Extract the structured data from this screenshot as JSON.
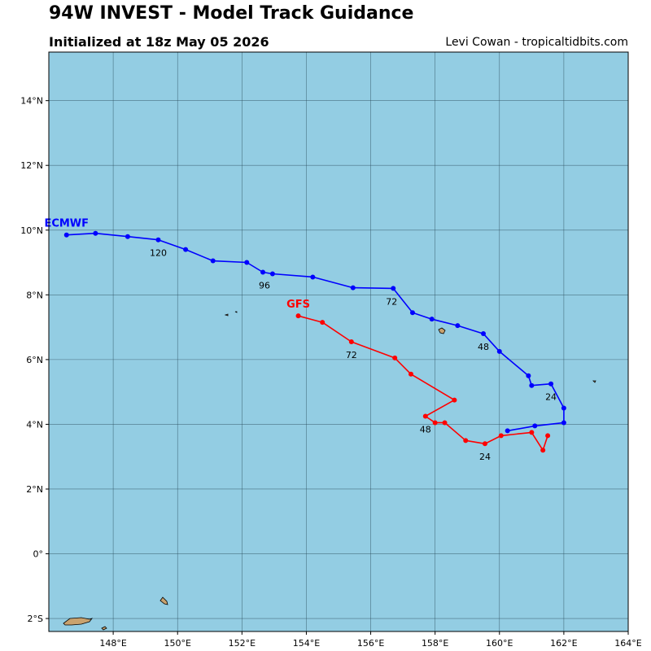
{
  "title": "94W INVEST - Model Track Guidance",
  "subtitle": "Initialized at 18z May 05 2026",
  "credit": "Levi Cowan - tropicaltidbits.com",
  "colors": {
    "ocean": "#93cde3",
    "land": "#c9a26e",
    "grid": "#2a4a5a",
    "ecmwf": "#0000ff",
    "gfs": "#ff0000"
  },
  "chart_data": {
    "type": "line",
    "x_range": [
      146.0,
      164.0
    ],
    "y_range": [
      -2.4,
      15.5
    ],
    "x_ticks": [
      148,
      150,
      152,
      154,
      156,
      158,
      160,
      162,
      164
    ],
    "x_tick_labels": [
      "148°E",
      "150°E",
      "152°E",
      "154°E",
      "156°E",
      "158°E",
      "160°E",
      "162°E",
      "164°E"
    ],
    "y_ticks": [
      -2,
      0,
      2,
      4,
      6,
      8,
      10,
      12,
      14
    ],
    "y_tick_labels": [
      "2°S",
      "0°",
      "2°N",
      "4°N",
      "6°N",
      "8°N",
      "10°N",
      "12°N",
      "14°N"
    ],
    "grid": true,
    "series": [
      {
        "name": "ECMWF",
        "color": "#0000ff",
        "points": [
          [
            160.25,
            3.8
          ],
          [
            161.1,
            3.95
          ],
          [
            162.0,
            4.05
          ],
          [
            162.0,
            4.5
          ],
          [
            161.6,
            5.25
          ],
          [
            161.0,
            5.2
          ],
          [
            160.9,
            5.5
          ],
          [
            160.0,
            6.25
          ],
          [
            159.5,
            6.8
          ],
          [
            158.7,
            7.05
          ],
          [
            157.9,
            7.25
          ],
          [
            157.3,
            7.45
          ],
          [
            156.7,
            8.2
          ],
          [
            155.45,
            8.22
          ],
          [
            154.2,
            8.55
          ],
          [
            152.95,
            8.65
          ],
          [
            152.65,
            8.7
          ],
          [
            152.15,
            9.0
          ],
          [
            151.1,
            9.05
          ],
          [
            150.25,
            9.4
          ],
          [
            149.4,
            9.7
          ],
          [
            148.45,
            9.8
          ],
          [
            147.45,
            9.9
          ],
          [
            146.55,
            9.85
          ]
        ],
        "hour_labels": [
          {
            "text": "24",
            "lon": 161.6,
            "lat": 4.95
          },
          {
            "text": "48",
            "lon": 159.5,
            "lat": 6.5
          },
          {
            "text": "72",
            "lon": 156.65,
            "lat": 7.9
          },
          {
            "text": "96",
            "lon": 152.7,
            "lat": 8.4
          },
          {
            "text": "120",
            "lon": 149.4,
            "lat": 9.4
          }
        ]
      },
      {
        "name": "GFS",
        "color": "#ff0000",
        "points": [
          [
            161.5,
            3.65
          ],
          [
            161.35,
            3.2
          ],
          [
            161.0,
            3.75
          ],
          [
            160.05,
            3.65
          ],
          [
            159.55,
            3.4
          ],
          [
            158.95,
            3.5
          ],
          [
            158.3,
            4.05
          ],
          [
            158.0,
            4.05
          ],
          [
            157.7,
            4.25
          ],
          [
            158.6,
            4.75
          ],
          [
            157.25,
            5.55
          ],
          [
            156.75,
            6.05
          ],
          [
            155.4,
            6.55
          ],
          [
            154.5,
            7.15
          ],
          [
            153.75,
            7.35
          ]
        ],
        "hour_labels": [
          {
            "text": "24",
            "lon": 159.55,
            "lat": 3.1
          },
          {
            "text": "48",
            "lon": 157.7,
            "lat": 3.95
          },
          {
            "text": "72",
            "lon": 155.4,
            "lat": 6.25
          }
        ]
      }
    ]
  }
}
